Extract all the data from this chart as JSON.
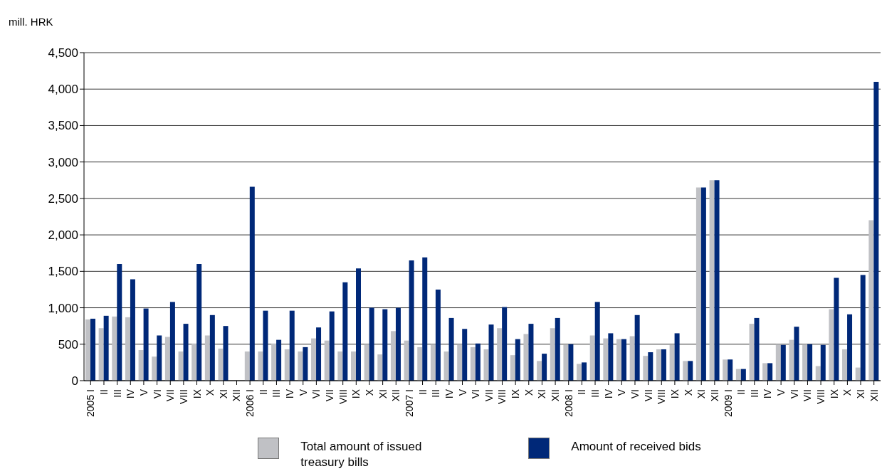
{
  "chart_data": {
    "type": "bar",
    "ylabel": "mill.  HRK",
    "categories": [
      "2005 I",
      "II",
      "III",
      "IV",
      "V",
      "VI",
      "VII",
      "VIII",
      "IX",
      "X",
      "XI",
      "XII",
      "2006 I",
      "II",
      "III",
      "IV",
      "V",
      "VI",
      "VII",
      "VIII",
      "IX",
      "X",
      "XI",
      "XII",
      "2007 I",
      "II",
      "III",
      "IV",
      "V",
      "VI",
      "VII",
      "VIII",
      "IX",
      "X",
      "XI",
      "XII",
      "2008 I",
      "II",
      "III",
      "IV",
      "V",
      "VI",
      "VII",
      "VIII",
      "IX",
      "X",
      "XI",
      "XII",
      "2009 I",
      "II",
      "III",
      "IV",
      "V",
      "VI",
      "VII",
      "VIII",
      "IX",
      "X",
      "XI",
      "XII"
    ],
    "series": [
      {
        "name": "Total amount of issued treasury bills",
        "color": "#c0c1c5",
        "values": [
          840,
          720,
          880,
          870,
          420,
          330,
          600,
          400,
          510,
          620,
          440,
          0,
          400,
          400,
          510,
          430,
          400,
          580,
          550,
          400,
          400,
          500,
          360,
          680,
          550,
          460,
          500,
          400,
          500,
          460,
          430,
          720,
          350,
          640,
          270,
          720,
          490,
          230,
          620,
          580,
          570,
          610,
          340,
          430,
          490,
          270,
          2650,
          2750,
          290,
          160,
          780,
          240,
          500,
          560,
          500,
          200,
          980,
          430,
          180,
          2200
        ]
      },
      {
        "name": "Amount of received bids",
        "color": "#002878",
        "values": [
          850,
          890,
          1600,
          1390,
          990,
          620,
          1080,
          780,
          1600,
          900,
          750,
          0,
          2660,
          960,
          560,
          960,
          460,
          730,
          950,
          1350,
          1540,
          1000,
          980,
          1000,
          1650,
          1690,
          1250,
          860,
          710,
          510,
          770,
          1010,
          570,
          780,
          370,
          860,
          500,
          250,
          1080,
          650,
          570,
          900,
          390,
          430,
          650,
          270,
          2650,
          2750,
          290,
          160,
          860,
          240,
          490,
          740,
          500,
          490,
          1410,
          910,
          1450,
          4100
        ]
      }
    ],
    "ylim": [
      0,
      4500
    ],
    "yticks": [
      0,
      {
        "value": 500,
        "label": "500"
      },
      {
        "value": 1000,
        "label": "1,000"
      },
      {
        "value": 1500,
        "label": "1,500"
      },
      {
        "value": 2000,
        "label": "2,000"
      },
      {
        "value": 2500,
        "label": "2,500"
      },
      {
        "value": 3000,
        "label": "3,000"
      },
      {
        "value": 3500,
        "label": "3,500"
      },
      {
        "value": 4000,
        "label": "4,000"
      },
      {
        "value": 4500,
        "label": "4,500"
      }
    ],
    "grid": "y",
    "legend": "bottom"
  }
}
